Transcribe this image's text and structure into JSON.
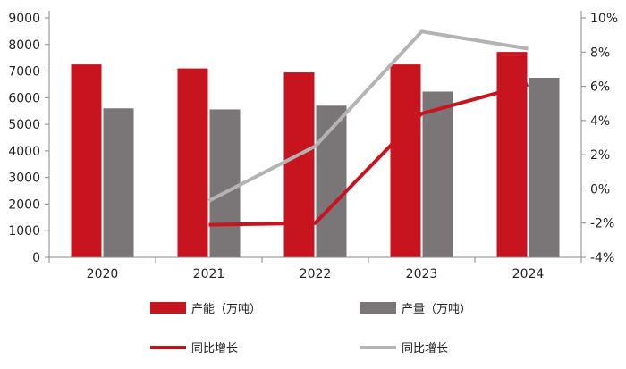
{
  "chart_data": {
    "type": "bar",
    "categories": [
      "2020",
      "2021",
      "2022",
      "2023",
      "2024"
    ],
    "left_axis": {
      "ylim": [
        0,
        9000
      ],
      "ticks": [
        "0",
        "1000",
        "2000",
        "3000",
        "4000",
        "5000",
        "6000",
        "7000",
        "8000",
        "9000"
      ]
    },
    "right_axis": {
      "ylim": [
        -4,
        10
      ],
      "ticks": [
        "-4%",
        "-2%",
        "0%",
        "2%",
        "4%",
        "6%",
        "8%",
        "10%"
      ]
    },
    "series": [
      {
        "name": "产能（万吨）",
        "type": "bar",
        "axis": "left",
        "color": "#c8141f",
        "values": [
          7250,
          7100,
          6950,
          7250,
          7720
        ]
      },
      {
        "name": "产量（万吨）",
        "type": "bar",
        "axis": "left",
        "color": "#7a7677",
        "values": [
          5600,
          5560,
          5700,
          6230,
          6750
        ]
      },
      {
        "name": "同比增长",
        "type": "line",
        "axis": "right",
        "color": "#c8141f",
        "values": [
          null,
          -2.1,
          -2.0,
          4.4,
          6.1
        ]
      },
      {
        "name": "同比增长",
        "type": "line",
        "axis": "right",
        "color": "#b3b3b3",
        "values": [
          null,
          -0.7,
          2.5,
          9.2,
          8.2
        ]
      }
    ],
    "grid": false,
    "legend_position": "bottom"
  }
}
